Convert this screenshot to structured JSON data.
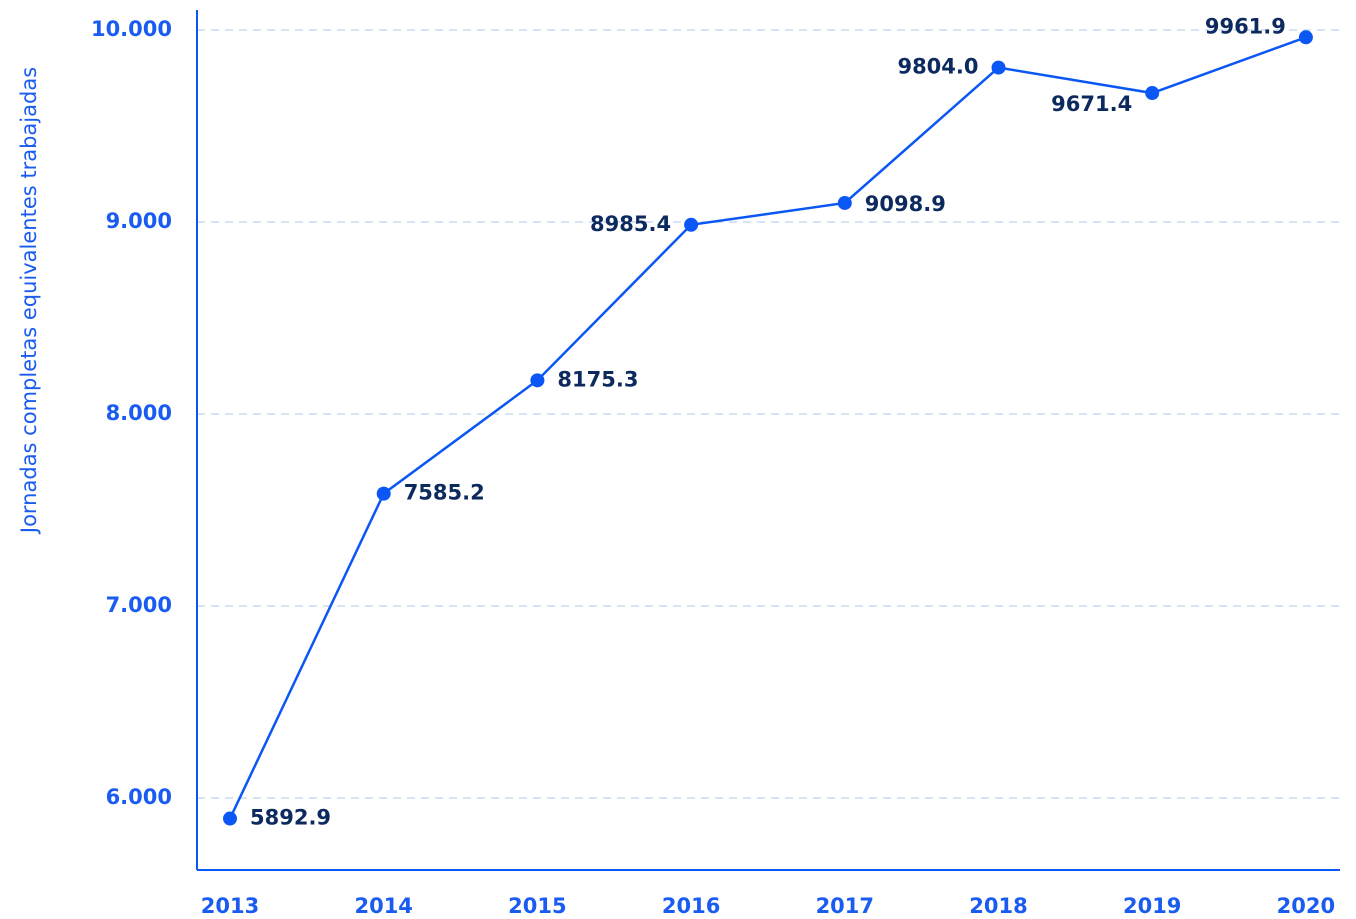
{
  "chart_data": {
    "type": "line",
    "y_label": "Jornadas completas equivalentes trabajadas",
    "categories": [
      "2013",
      "2014",
      "2015",
      "2016",
      "2017",
      "2018",
      "2019",
      "2020"
    ],
    "series": [
      {
        "name": "Jornadas",
        "color": "#0a57f5",
        "values": [
          5892.9,
          7585.2,
          8175.3,
          8985.4,
          9098.9,
          9804.0,
          9671.4,
          9961.9
        ],
        "value_labels": [
          "5892.9",
          "7585.2",
          "8175.3",
          "8985.4",
          "9098.9",
          "9804.0",
          "9671.4",
          "9961.9"
        ]
      }
    ],
    "ylim": [
      5625,
      10104
    ],
    "yticks": [
      {
        "value": 6000,
        "label": "6.000"
      },
      {
        "value": 7000,
        "label": "7.000"
      },
      {
        "value": 8000,
        "label": "8.000"
      },
      {
        "value": 9000,
        "label": "9.000"
      },
      {
        "value": 10000,
        "label": "10.000"
      }
    ],
    "grid": true
  }
}
